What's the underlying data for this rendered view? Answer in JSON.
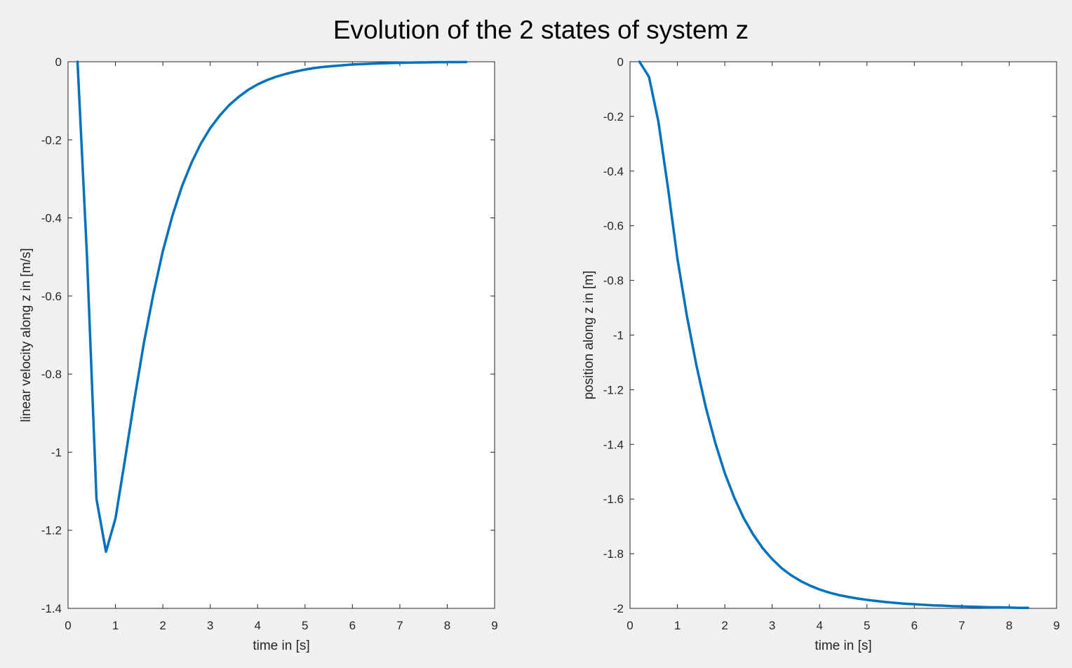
{
  "figure": {
    "title": "Evolution of the 2 states of system z",
    "background_color": "#f0f0f0",
    "axes_color": "#ffffff",
    "line_color": "#0072bd"
  },
  "chart_data": [
    {
      "type": "line",
      "xlabel": "time in [s]",
      "ylabel": "linear velocity along z in [m/s]",
      "xlim": [
        0,
        9
      ],
      "ylim": [
        -1.4,
        0
      ],
      "xticks": [
        0,
        1,
        2,
        3,
        4,
        5,
        6,
        7,
        8,
        9
      ],
      "xtick_labels": [
        "0",
        "1",
        "2",
        "3",
        "4",
        "5",
        "6",
        "7",
        "8",
        "9"
      ],
      "yticks": [
        -1.4,
        -1.2,
        -1,
        -0.8,
        -0.6,
        -0.4,
        -0.2,
        0
      ],
      "ytick_labels": [
        "-1.4",
        "-1.2",
        "-1",
        "-0.8",
        "-0.6",
        "-0.4",
        "-0.2",
        "0"
      ],
      "grid": false,
      "series": [
        {
          "x": [
            0.2,
            0.4,
            0.6,
            0.8,
            1.0,
            1.2,
            1.4,
            1.6,
            1.8,
            2.0,
            2.2,
            2.4,
            2.6,
            2.8,
            3.0,
            3.2,
            3.4,
            3.6,
            3.8,
            4.0,
            4.2,
            4.4,
            4.6,
            4.8,
            5.0,
            5.2,
            5.4,
            5.6,
            5.8,
            6.0,
            6.2,
            6.4,
            6.6,
            6.8,
            7.0,
            7.2,
            7.4,
            7.6,
            7.8,
            8.0,
            8.2,
            8.4
          ],
          "y": [
            0,
            -0.5,
            -1.12,
            -1.255,
            -1.17,
            -1.02,
            -0.865,
            -0.72,
            -0.595,
            -0.485,
            -0.395,
            -0.32,
            -0.26,
            -0.21,
            -0.17,
            -0.138,
            -0.111,
            -0.09,
            -0.072,
            -0.058,
            -0.047,
            -0.038,
            -0.031,
            -0.025,
            -0.02,
            -0.016,
            -0.013,
            -0.011,
            -0.009,
            -0.007,
            -0.006,
            -0.005,
            -0.004,
            -0.0033,
            -0.0027,
            -0.0022,
            -0.0018,
            -0.0015,
            -0.0012,
            -0.001,
            -0.0008,
            -0.0006
          ]
        }
      ]
    },
    {
      "type": "line",
      "xlabel": "time in [s]",
      "ylabel": "position along z in [m]",
      "xlim": [
        0,
        9
      ],
      "ylim": [
        -2,
        0
      ],
      "xticks": [
        0,
        1,
        2,
        3,
        4,
        5,
        6,
        7,
        8,
        9
      ],
      "xtick_labels": [
        "0",
        "1",
        "2",
        "3",
        "4",
        "5",
        "6",
        "7",
        "8",
        "9"
      ],
      "yticks": [
        -2,
        -1.8,
        -1.6,
        -1.4,
        -1.2,
        -1,
        -0.8,
        -0.6,
        -0.4,
        -0.2,
        0
      ],
      "ytick_labels": [
        "-2",
        "-1.8",
        "-1.6",
        "-1.4",
        "-1.2",
        "-1",
        "-0.8",
        "-0.6",
        "-0.4",
        "-0.2",
        "0"
      ],
      "grid": false,
      "series": [
        {
          "x": [
            0.2,
            0.4,
            0.6,
            0.8,
            1.0,
            1.2,
            1.4,
            1.6,
            1.8,
            2.0,
            2.2,
            2.4,
            2.6,
            2.8,
            3.0,
            3.2,
            3.4,
            3.6,
            3.8,
            4.0,
            4.2,
            4.4,
            4.6,
            4.8,
            5.0,
            5.2,
            5.4,
            5.6,
            5.8,
            6.0,
            6.2,
            6.4,
            6.6,
            6.8,
            7.0,
            7.2,
            7.4,
            7.6,
            7.8,
            8.0,
            8.2,
            8.4
          ],
          "y": [
            0,
            -0.055,
            -0.22,
            -0.46,
            -0.72,
            -0.93,
            -1.11,
            -1.265,
            -1.395,
            -1.505,
            -1.595,
            -1.67,
            -1.73,
            -1.78,
            -1.82,
            -1.853,
            -1.879,
            -1.9,
            -1.917,
            -1.931,
            -1.942,
            -1.951,
            -1.958,
            -1.964,
            -1.969,
            -1.973,
            -1.977,
            -1.98,
            -1.983,
            -1.985,
            -1.987,
            -1.989,
            -1.99,
            -1.992,
            -1.993,
            -1.994,
            -1.995,
            -1.996,
            -1.996,
            -1.997,
            -1.998,
            -1.998
          ]
        }
      ]
    }
  ]
}
